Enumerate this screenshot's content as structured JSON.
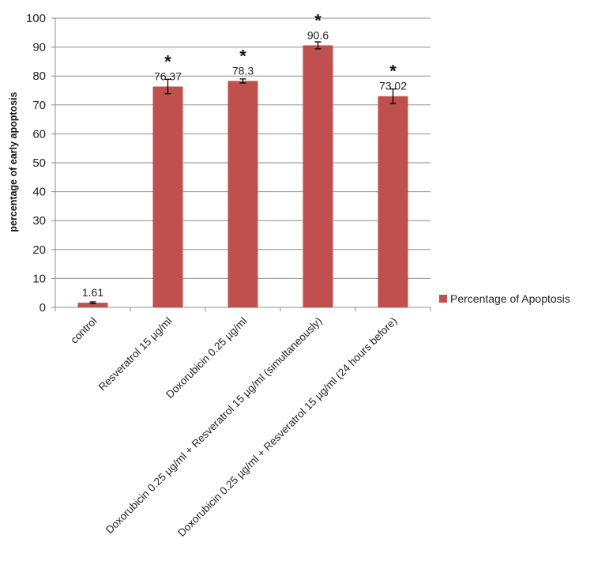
{
  "chart_data": {
    "type": "bar",
    "title": "",
    "xlabel": "",
    "ylabel": "percentage of early apoptosis",
    "ylim": [
      0,
      100
    ],
    "yticks": [
      0,
      10,
      20,
      30,
      40,
      50,
      60,
      70,
      80,
      90,
      100
    ],
    "grid": true,
    "legend_position": "right",
    "categories": [
      "control",
      "Resveratrol 15 µg/ml",
      "Doxorubicin 0.25 µg/ml",
      "Doxorubicin 0.25 µg/ml + Resveratrol 15 µg/ml (simultaneously)",
      "Doxorubicin 0.25 µg/ml + Resveratrol 15 µg/ml (24 hours before)"
    ],
    "series": [
      {
        "name": "Percentage of Apoptosis",
        "color": "#c0504d",
        "values": [
          1.61,
          76.37,
          78.3,
          90.6,
          73.02
        ],
        "value_labels": [
          "1.61",
          "76.37",
          "78.3",
          "90.6",
          "73.02"
        ],
        "error": [
          0.3,
          2.5,
          0.7,
          1.2,
          2.5
        ],
        "significance": [
          "",
          "*",
          "*",
          "*",
          "*"
        ]
      }
    ]
  }
}
